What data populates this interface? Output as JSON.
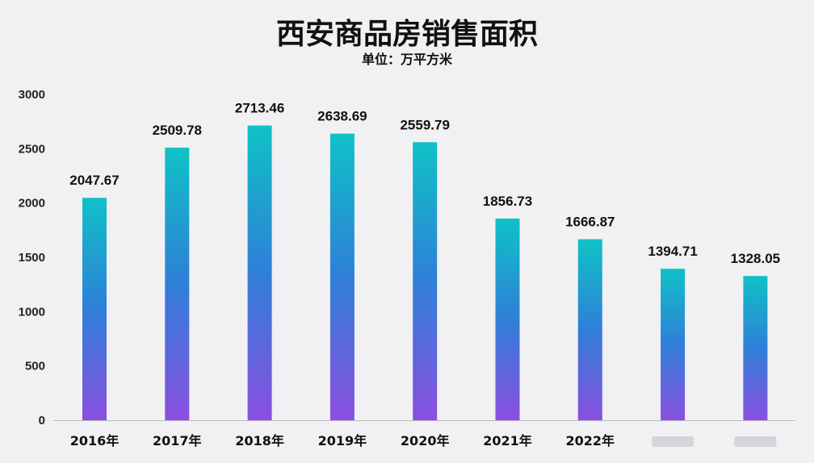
{
  "chart_data": {
    "type": "bar",
    "title": "西安商品房销售面积",
    "subtitle": "单位：万平方米",
    "categories": [
      "2016年",
      "2017年",
      "2018年",
      "2019年",
      "2020年",
      "2021年",
      "2022年",
      "",
      ""
    ],
    "values": [
      2047.67,
      2509.78,
      2713.46,
      2638.69,
      2559.79,
      1856.73,
      1666.87,
      1394.71,
      1328.05
    ],
    "value_labels": [
      "2047.67",
      "2509.78",
      "2713.46",
      "2638.69",
      "2559.79",
      "1856.73",
      "1666.87",
      "1394.71",
      "1328.05"
    ],
    "ylim": [
      0,
      3000
    ],
    "yticks": [
      0,
      500,
      1000,
      1500,
      2000,
      2500,
      3000
    ],
    "ytick_labels": [
      "0",
      "500",
      "1000",
      "1500",
      "2000",
      "2500",
      "3000"
    ],
    "xlabel": "",
    "ylabel": "",
    "grid": false,
    "legend": "none",
    "colors": {
      "bar_top": "#0fc2c6",
      "bar_mid": "#2f7fd8",
      "bar_bottom": "#8a4fe0",
      "background": "#f1f1f3",
      "axis": "#bbbbbb"
    }
  }
}
